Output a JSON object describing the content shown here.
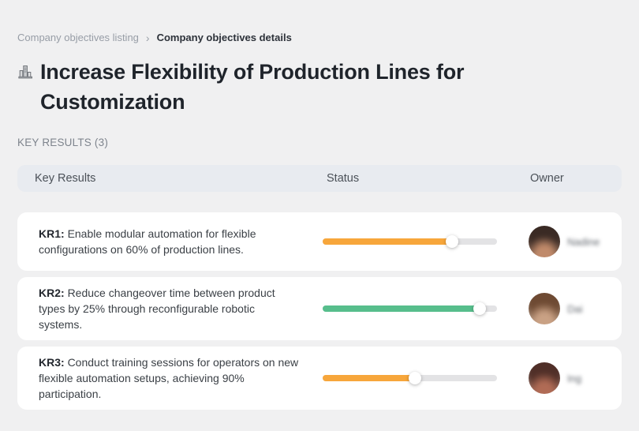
{
  "breadcrumb": {
    "parent": "Company objectives listing",
    "separator": "›",
    "current": "Company objectives details"
  },
  "page": {
    "title": "Increase Flexibility of Production Lines for Customization",
    "section_label": "KEY RESULTS (3)"
  },
  "table": {
    "headers": {
      "key_results": "Key Results",
      "status": "Status",
      "owner": "Owner"
    },
    "rows": [
      {
        "kr_label": "KR1:",
        "description": "Enable modular automation for flexible configurations on 60% of production lines.",
        "progress_percent": 74,
        "progress_color": "#F7A63B",
        "owner_name": "Nadine",
        "avatar_palette": {
          "hair": "#3a2a24",
          "skin": "#c08a6a",
          "bg1": "#9b8474",
          "bg2": "#55443c"
        }
      },
      {
        "kr_label": "KR2:",
        "description": "Reduce changeover time between product types by 25% through reconfigurable robotic systems.",
        "progress_percent": 90,
        "progress_color": "#57BE8C",
        "owner_name": "Dai",
        "avatar_palette": {
          "hair": "#6e4a33",
          "skin": "#c9a184",
          "bg1": "#d8d2cb",
          "bg2": "#8a7663"
        }
      },
      {
        "kr_label": "KR3:",
        "description": "Conduct training sessions for operators on new flexible automation setups, achieving 90% participation.",
        "progress_percent": 53,
        "progress_color": "#F7A63B",
        "owner_name": "Ing",
        "avatar_palette": {
          "hair": "#502f28",
          "skin": "#b06b55",
          "bg1": "#d8cdc6",
          "bg2": "#7a5548"
        }
      }
    ]
  },
  "colors": {
    "page_background": "#f0f0f1",
    "card_background": "#ffffff",
    "header_background": "#e8ebf0",
    "track": "#e3e3e5",
    "orange": "#F7A63B",
    "green": "#57BE8C"
  }
}
